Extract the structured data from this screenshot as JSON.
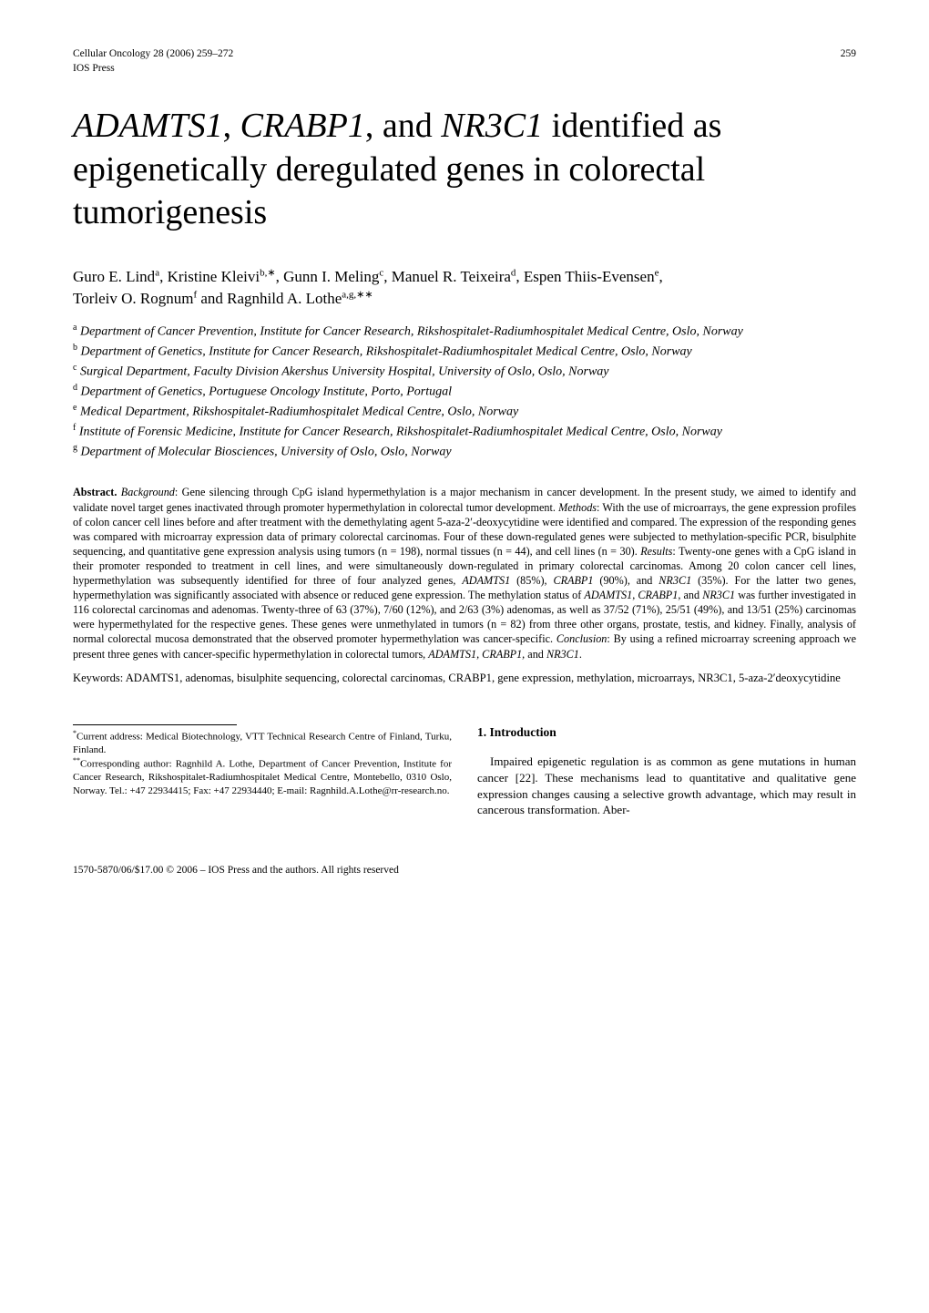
{
  "header": {
    "journal_ref": "Cellular Oncology 28 (2006) 259–272",
    "publisher": "IOS Press",
    "page_number": "259"
  },
  "title": {
    "gene1": "ADAMTS1",
    "sep1": ", ",
    "gene2": "CRABP1",
    "sep2": ", and ",
    "gene3": "NR3C1",
    "rest": " identified as epigenetically deregulated genes in colorectal tumorigenesis"
  },
  "authors": {
    "a1": "Guro E. Lind",
    "a1_aff": "a",
    "a2": ", Kristine Kleivi",
    "a2_aff": "b,∗",
    "a3": ", Gunn I. Meling",
    "a3_aff": "c",
    "a4": ", Manuel R. Teixeira",
    "a4_aff": "d",
    "a5": ", Espen Thiis-Evensen",
    "a5_aff": "e",
    "a6": "Torleiv O. Rognum",
    "a6_aff": "f",
    "a7": " and Ragnhild A. Lothe",
    "a7_aff": "a,g,∗∗"
  },
  "affiliations": {
    "a": {
      "k": "a",
      "t": " Department of Cancer Prevention, Institute for Cancer Research, Rikshospitalet-Radiumhospitalet Medical Centre, Oslo, Norway"
    },
    "b": {
      "k": "b",
      "t": " Department of Genetics, Institute for Cancer Research, Rikshospitalet-Radiumhospitalet Medical Centre, Oslo, Norway"
    },
    "c": {
      "k": "c",
      "t": " Surgical Department, Faculty Division Akershus University Hospital, University of Oslo, Oslo, Norway"
    },
    "d": {
      "k": "d",
      "t": " Department of Genetics, Portuguese Oncology Institute, Porto, Portugal"
    },
    "e": {
      "k": "e",
      "t": " Medical Department, Rikshospitalet-Radiumhospitalet Medical Centre, Oslo, Norway"
    },
    "f": {
      "k": "f",
      "t": " Institute of Forensic Medicine, Institute for Cancer Research, Rikshospitalet-Radiumhospitalet Medical Centre, Oslo, Norway"
    },
    "g": {
      "k": "g",
      "t": " Department of Molecular Biosciences, University of Oslo, Oslo, Norway"
    }
  },
  "abstract": {
    "label": "Abstract.",
    "bg_label": " Background",
    "bg": ": Gene silencing through CpG island hypermethylation is a major mechanism in cancer development. In the present study, we aimed to identify and validate novel target genes inactivated through promoter hypermethylation in colorectal tumor development. ",
    "mt_label": "Methods",
    "mt": ": With the use of microarrays, the gene expression profiles of colon cancer cell lines before and after treatment with the demethylating agent 5-aza-2′-deoxycytidine were identified and compared. The expression of the responding genes was compared with microarray expression data of primary colorectal carcinomas. Four of these down-regulated genes were subjected to methylation-specific PCR, bisulphite sequencing, and quantitative gene expression analysis using tumors (n = 198), normal tissues (n = 44), and cell lines (n = 30). ",
    "rs_label": "Results",
    "rs1": ": Twenty-one genes with a CpG island in their promoter responded to treatment in cell lines, and were simultaneously down-regulated in primary colorectal carcinomas. Among 20 colon cancer cell lines, hypermethylation was subsequently identified for three of four analyzed genes, ",
    "g_adamts": "ADAMTS1",
    "rs2": " (85%), ",
    "g_crabp": "CRABP1",
    "rs3": " (90%), and ",
    "g_nr3c1": "NR3C1",
    "rs4": " (35%). For the latter two genes, hypermethylation was significantly associated with absence or reduced gene expression. The methylation status of ",
    "g_adamts2": "ADAMTS1",
    "rs5": ", ",
    "g_crabp2": "CRABP1",
    "rs6": ", and ",
    "g_nr3c1_2": "NR3C1",
    "rs7": " was further investigated in 116 colorectal carcinomas and adenomas. Twenty-three of 63 (37%), 7/60 (12%), and 2/63 (3%) adenomas, as well as 37/52 (71%), 25/51 (49%), and 13/51 (25%) carcinomas were hypermethylated for the respective genes. These genes were unmethylated in tumors (n = 82) from three other organs, prostate, testis, and kidney. Finally, analysis of normal colorectal mucosa demonstrated that the observed promoter hypermethylation was cancer-specific. ",
    "cn_label": "Conclusion",
    "cn1": ": By using a refined microarray screening approach we present three genes with cancer-specific hypermethylation in colorectal tumors, ",
    "g_all": "ADAMTS1, CRABP1,",
    "cn2": " and ",
    "g_nr3c1_3": "NR3C1",
    "cn3": "."
  },
  "keywords": {
    "text1": "Keywords: ADAMTS1, adenomas, bisulphite sequencing, colorectal carcinomas, CRABP1, gene expression, methylation, microarrays, NR3C1, 5-aza-2′deoxycytidine"
  },
  "footnotes": {
    "f1_k": "*",
    "f1": "Current address: Medical Biotechnology, VTT Technical Research Centre of Finland, Turku, Finland.",
    "f2_k": "**",
    "f2": "Corresponding author: Ragnhild A. Lothe, Department of Cancer Prevention, Institute for Cancer Research, Rikshospitalet-Radiumhospitalet Medical Centre, Montebello, 0310 Oslo, Norway. Tel.: +47 22934415; Fax: +47 22934440; E-mail: Ragnhild.A.Lothe@rr-research.no."
  },
  "intro": {
    "heading": "1. Introduction",
    "body": "Impaired epigenetic regulation is as common as gene mutations in human cancer [22]. These mechanisms lead to quantitative and qualitative gene expression changes causing a selective growth advantage, which may result in cancerous transformation. Aber-"
  },
  "copyright": "1570-5870/06/$17.00 © 2006 – IOS Press and the authors. All rights reserved"
}
